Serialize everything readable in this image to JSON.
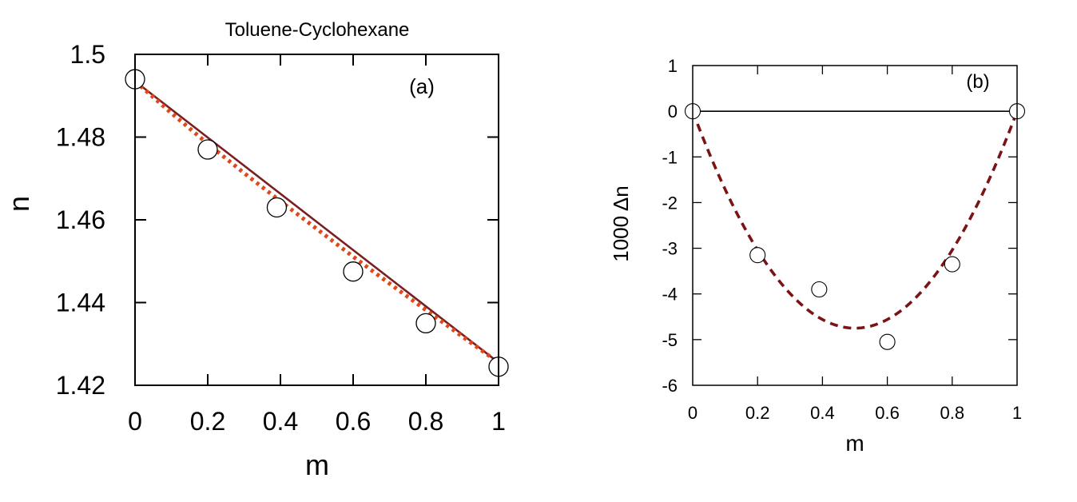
{
  "chart_data": [
    {
      "panel": "(a)",
      "type": "line",
      "title": "Toluene-Cyclohexane",
      "xlabel": "m",
      "ylabel": "n",
      "xlim": [
        0,
        1
      ],
      "ylim": [
        1.42,
        1.5
      ],
      "xticks": [
        0,
        0.2,
        0.4,
        0.6,
        0.8,
        1
      ],
      "xtick_labels": [
        "0",
        "0.2",
        "0.4",
        "0.6",
        "0.8",
        "1"
      ],
      "yticks": [
        1.42,
        1.44,
        1.46,
        1.48,
        1.5
      ],
      "ytick_labels": [
        "1.42",
        "1.44",
        "1.46",
        "1.48",
        "1.5"
      ],
      "grid": false,
      "series": [
        {
          "style": "solid-line",
          "color": "#7a1f1f",
          "x": [
            0,
            1
          ],
          "y": [
            1.4935,
            1.4255
          ]
        },
        {
          "style": "dotted-line",
          "color": "#e0481c",
          "x": [
            0,
            0.1,
            0.2,
            0.3,
            0.4,
            0.5,
            0.6,
            0.7,
            0.8,
            0.9,
            1
          ],
          "y": [
            1.4935,
            1.4858,
            1.4784,
            1.4713,
            1.4645,
            1.4578,
            1.4511,
            1.4446,
            1.4382,
            1.4318,
            1.4255
          ]
        },
        {
          "style": "open-circles",
          "color": "#000000",
          "x": [
            0,
            0.2,
            0.39,
            0.6,
            0.8,
            1
          ],
          "y": [
            1.494,
            1.477,
            1.463,
            1.4475,
            1.435,
            1.4245
          ]
        }
      ]
    },
    {
      "panel": "(b)",
      "type": "line",
      "title": "",
      "xlabel": "m",
      "ylabel": "1000 Δn",
      "xlim": [
        0,
        1
      ],
      "ylim": [
        -6,
        1
      ],
      "xticks": [
        0,
        0.2,
        0.4,
        0.6,
        0.8,
        1
      ],
      "xtick_labels": [
        "0",
        "0.2",
        "0.4",
        "0.6",
        "0.8",
        "1"
      ],
      "yticks": [
        -6,
        -5,
        -4,
        -3,
        -2,
        -1,
        0,
        1
      ],
      "ytick_labels": [
        "-6",
        "-5",
        "-4",
        "-3",
        "-2",
        "-1",
        "0",
        "1"
      ],
      "grid": false,
      "series": [
        {
          "style": "solid-line",
          "color": "#000000",
          "x": [
            0,
            1
          ],
          "y": [
            0,
            0
          ]
        },
        {
          "style": "dashed-line",
          "color": "#7a1414",
          "function": "-19 * m * (1 - m)"
        },
        {
          "style": "open-circles",
          "color": "#000000",
          "x": [
            0,
            0.2,
            0.39,
            0.6,
            0.8,
            1
          ],
          "y": [
            0,
            -3.15,
            -3.9,
            -5.05,
            -3.35,
            0
          ]
        }
      ]
    }
  ]
}
